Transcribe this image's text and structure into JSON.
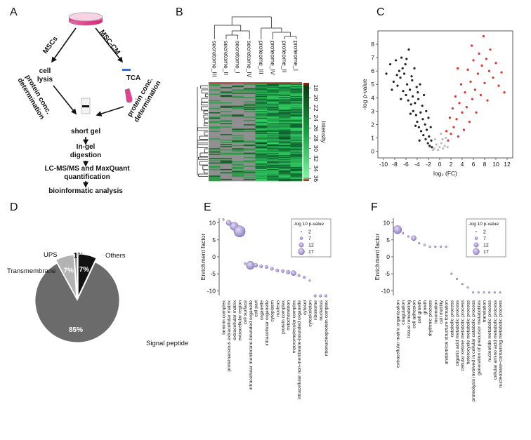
{
  "chart_data": [
    {
      "label": "A",
      "type": "workflow",
      "nodes": [
        [
          "MSCs"
        ],
        [
          "MSC-CM"
        ],
        [
          "cell",
          "lysis"
        ],
        [
          "TCA"
        ],
        [
          "protein conc.",
          "determination"
        ],
        [
          "protein conc.",
          "determination"
        ],
        [
          "short gel"
        ],
        [
          "In-gel",
          "digestion"
        ],
        [
          "LC-MS/MS and MaxQuant",
          "quantification"
        ],
        [
          "bioinformatic analysis"
        ]
      ]
    },
    {
      "label": "B",
      "type": "heatmap",
      "columns": [
        "secretome_III",
        "secretome_II",
        "secretome_I",
        "secretome_IV",
        "proteome_III",
        "proteome_IV",
        "proteome_II",
        "proteome_I"
      ],
      "colorbar": {
        "label": "intensity",
        "lim": [
          17,
          36.5
        ],
        "ticks": [
          18,
          20,
          22,
          24,
          26,
          28,
          30,
          32,
          34,
          36
        ]
      }
    },
    {
      "label": "C",
      "type": "scatter",
      "xlabel": "log₂ (FC)",
      "ylabel": "-log p-value",
      "xlim": [
        -11,
        13
      ],
      "ylim": [
        -0.5,
        9
      ],
      "xticks": [
        -10,
        -8,
        -6,
        -4,
        -2,
        0,
        2,
        4,
        6,
        8,
        10,
        12
      ],
      "yticks": [
        0,
        1,
        2,
        3,
        4,
        5,
        6,
        7,
        8
      ],
      "series": [
        {
          "color": "#222222",
          "x": [
            -9.5,
            -8.8,
            -8.2,
            -7.8,
            -7.5,
            -7.2,
            -7,
            -6.8,
            -6.5,
            -6.3,
            -6.1,
            -6,
            -5.8,
            -5.6,
            -5.5,
            -5.3,
            -5.1,
            -5,
            -4.8,
            -4.7,
            -4.5,
            -4.4,
            -4.2,
            -4.1,
            -4,
            -3.8,
            -3.7,
            -3.5,
            -3.4,
            -3.3,
            -3.1,
            -3,
            -2.9,
            -2.8,
            -2.6,
            -2.5,
            -2.4,
            -2.3,
            -2.1,
            -2,
            -1.9,
            -1.8,
            -1.6,
            -1.5,
            -1.4,
            -6.6,
            -5.9,
            -4.9,
            -3.9,
            -7.6,
            -8.5,
            -6.9,
            -5.2,
            -4.3,
            -3.6
          ],
          "y": [
            5.8,
            6.5,
            5.2,
            6.8,
            4.9,
            6,
            5.5,
            7,
            4.5,
            5.8,
            6.5,
            4.2,
            5,
            3.8,
            7.6,
            4.6,
            3.5,
            5.6,
            4.1,
            3,
            6.2,
            3.6,
            2.7,
            4.8,
            2.2,
            3.9,
            1.8,
            5,
            2.9,
            1.5,
            3.4,
            2.4,
            1.2,
            4.2,
            2,
            0.9,
            3,
            1.6,
            0.6,
            2.5,
            1.1,
            0.4,
            1.8,
            0.8,
            0.3,
            6.2,
            6.9,
            5.3,
            4.4,
            5.7,
            4.6,
            3.9,
            2.8,
            1.9,
            0.8
          ]
        },
        {
          "color": "#bbbbbb",
          "x": [
            -1,
            -0.6,
            -0.3,
            0,
            0.3,
            0.6,
            0.9,
            1.1,
            -0.8,
            0.2,
            1.4,
            -1.2,
            0.5
          ],
          "y": [
            0.2,
            0.5,
            0.1,
            0.3,
            0.6,
            0.2,
            0.4,
            1,
            0.9,
            1.3,
            0.3,
            0.1,
            0.9
          ]
        },
        {
          "color": "#e53024",
          "x": [
            1.2,
            1.5,
            1.8,
            2,
            2.3,
            2.5,
            2.8,
            3,
            3.3,
            3.5,
            3.8,
            4,
            4.3,
            4.5,
            4.8,
            5,
            5.3,
            5.5,
            5.8,
            6,
            6.3,
            6.5,
            6.8,
            7,
            7.3,
            7.5,
            7.8,
            8,
            8.3,
            8.5,
            8.8,
            9,
            9.5,
            10,
            10.5,
            11,
            11.5,
            3.2,
            5.7
          ],
          "y": [
            1.5,
            0.8,
            2.5,
            1.3,
            3.2,
            1.8,
            4.1,
            2.4,
            1.1,
            3.6,
            5,
            2.9,
            1.6,
            4.4,
            3.3,
            6.1,
            2.2,
            5.2,
            3.9,
            6.8,
            4.6,
            2.9,
            5.8,
            7.3,
            4.2,
            6.4,
            8.6,
            5.1,
            6.9,
            3.8,
            6,
            7.6,
            5.5,
            6.6,
            4.9,
            5.9,
            4.4,
            6.2,
            7.9
          ]
        }
      ]
    },
    {
      "label": "D",
      "type": "pie",
      "categories": [
        "Signal peptide",
        "Transmembrane",
        "UPS",
        "Others"
      ],
      "values": [
        85,
        7,
        1,
        7
      ],
      "value_labels": [
        "85%",
        "7%",
        "1%",
        "7%"
      ],
      "colors": [
        "#6b6b6b",
        "#b3b3b3",
        "#8a8a8a",
        "#111111"
      ]
    },
    {
      "label": "E",
      "type": "bubble",
      "ylabel": "Enrichment factor",
      "ylim": [
        -12,
        12
      ],
      "yticks": [
        -10,
        -5,
        0,
        5,
        10
      ],
      "color": "#9c8cc9",
      "categories": [
        "laminin complex",
        "proteinaceous extracellular matrix",
        "extracellular matrix",
        "extracellular region",
        "cell surface",
        "intracellular membrane-bounded organelle",
        "cell part",
        "organelle",
        "intracellular organelle",
        "cytoplasm",
        "nucleus",
        "protein complex",
        "mitochondrion",
        "macromolecular complex",
        "intracellular non-membrane-bounded organelle",
        "cytosol",
        "cytoskeleton",
        "ribosome",
        "nucleolus",
        "ribonucleoprotein complex"
      ],
      "values": [
        11,
        10,
        9,
        7.5,
        -2,
        -2.5,
        -2.5,
        -2.8,
        -3,
        -3.5,
        -4,
        -4.2,
        -4.5,
        -4.8,
        -5.5,
        -6,
        -7,
        -11.5,
        -11.5,
        -11.5
      ],
      "sizes": [
        2,
        7,
        12,
        17,
        2,
        12,
        5,
        4,
        4,
        4,
        4,
        4,
        5,
        7,
        3,
        3,
        2,
        3,
        3,
        3
      ],
      "size_legend": {
        "title": "-log 10 p-value",
        "values": [
          2,
          7,
          12,
          17
        ]
      }
    },
    {
      "label": "F",
      "type": "bubble",
      "ylabel": "Enrichment factor",
      "ylim": [
        -12,
        12
      ],
      "yticks": [
        -10,
        -5,
        0,
        5,
        10
      ],
      "color": "#9c8cc9",
      "categories": [
        "extracellular matrix organization",
        "coagulation",
        "tissue remodeling",
        "cell adhesion",
        "cell growth",
        "growth",
        "rhythmic process",
        "locomotion",
        "cell motility",
        "anatomical structure formation",
        "catabolic process",
        "organic acid metabolic process",
        "cellular ketone metabolic process",
        "heterocycle metabolic process",
        "proteolysis involved in cellular catabolic process",
        "generation of precursor metabolites",
        "translation",
        "nucleotide metabolic process",
        "cellular amino acid metabolic process",
        "nucleobase-containing metabolic process"
      ],
      "values": [
        8,
        7,
        6,
        5.5,
        4,
        3.5,
        3,
        3,
        3,
        3,
        -5,
        -6.5,
        -8,
        -9,
        -10.5,
        -10.5,
        -10.5,
        -10.5,
        -10.5,
        -10.5
      ],
      "sizes": [
        12,
        2,
        2,
        7,
        2,
        2,
        2,
        2,
        2,
        2,
        2,
        2,
        2,
        2,
        2,
        2,
        2,
        2,
        2,
        2
      ],
      "size_legend": {
        "title": "-log 10 p-value",
        "values": [
          2,
          7,
          12,
          17
        ]
      }
    }
  ]
}
